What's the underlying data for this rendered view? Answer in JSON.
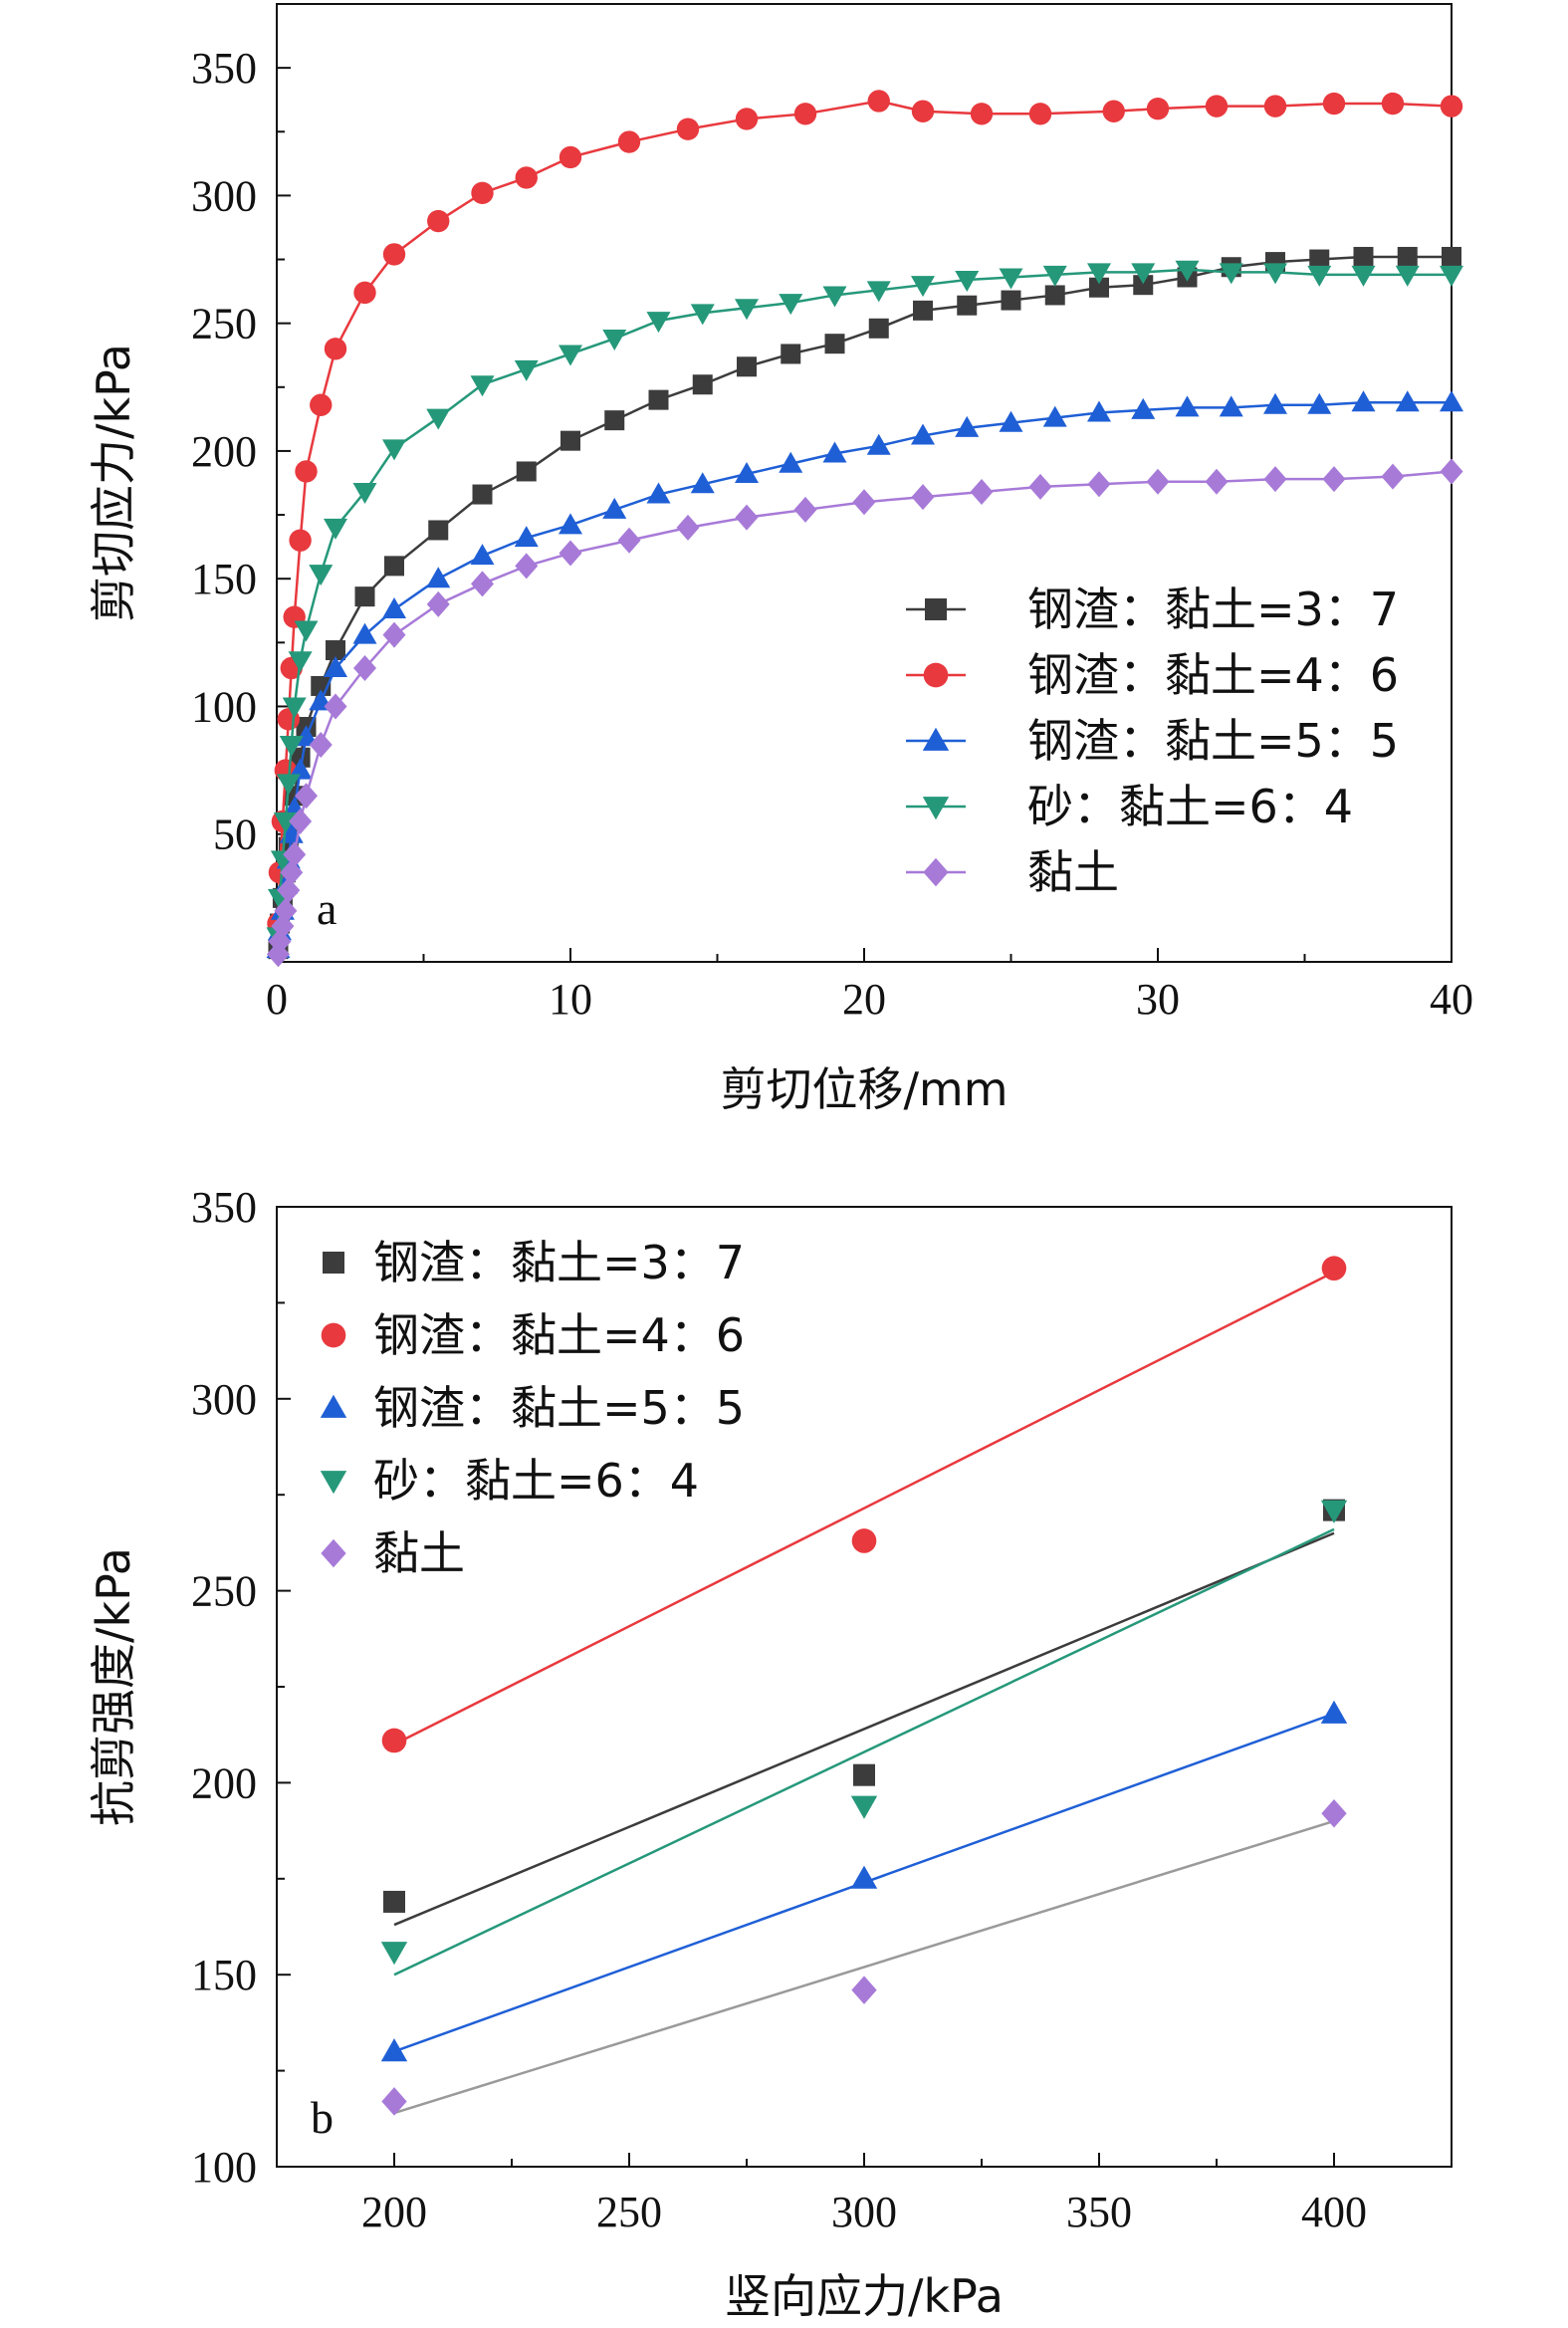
{
  "chart_data": [
    {
      "type": "line",
      "panel_label": "a",
      "xlabel": "剪切位移/mm",
      "ylabel": "剪切应力/kPa",
      "xlim": [
        0,
        40
      ],
      "ylim": [
        0,
        375
      ],
      "xticks": [
        0,
        10,
        20,
        30,
        40
      ],
      "yticks": [
        50,
        100,
        150,
        200,
        250,
        300,
        350
      ],
      "legend_position": "center-right",
      "series": [
        {
          "name": "钢渣：黏土=3：7",
          "color": "#3c3c3c",
          "marker": "square",
          "x": [
            0.05,
            0.1,
            0.2,
            0.3,
            0.4,
            0.5,
            0.6,
            0.8,
            1.0,
            1.5,
            2.0,
            3.0,
            4.0,
            5.5,
            7.0,
            8.5,
            10.0,
            11.5,
            13.0,
            14.5,
            16.0,
            17.5,
            19.0,
            20.5,
            22.0,
            23.5,
            25.0,
            26.5,
            28.0,
            29.5,
            31.0,
            32.5,
            34.0,
            35.5,
            37.0,
            38.5,
            40.0
          ],
          "y": [
            5,
            15,
            25,
            35,
            45,
            55,
            65,
            80,
            92,
            108,
            122,
            143,
            155,
            169,
            183,
            192,
            204,
            212,
            220,
            226,
            233,
            238,
            242,
            248,
            255,
            257,
            259,
            261,
            264,
            265,
            268,
            272,
            274,
            275,
            276,
            276,
            276
          ]
        },
        {
          "name": "钢渣：黏土=4：6",
          "color": "#e8393e",
          "marker": "circle",
          "x": [
            0.05,
            0.1,
            0.2,
            0.3,
            0.4,
            0.5,
            0.6,
            0.8,
            1.0,
            1.5,
            2.0,
            3.0,
            4.0,
            5.5,
            7.0,
            8.5,
            10.0,
            12.0,
            14.0,
            16.0,
            18.0,
            20.5,
            22.0,
            24.0,
            26.0,
            28.5,
            30.0,
            32.0,
            34.0,
            36.0,
            38.0,
            40.0
          ],
          "y": [
            15,
            35,
            55,
            75,
            95,
            115,
            135,
            165,
            192,
            218,
            240,
            262,
            277,
            290,
            301,
            307,
            315,
            321,
            326,
            330,
            332,
            337,
            333,
            332,
            332,
            333,
            334,
            335,
            335,
            336,
            336,
            335
          ]
        },
        {
          "name": "钢渣：黏土=5：5",
          "color": "#1f5fd6",
          "marker": "triangle-up",
          "x": [
            0.05,
            0.1,
            0.2,
            0.3,
            0.4,
            0.5,
            0.6,
            0.8,
            1.0,
            1.5,
            2.0,
            3.0,
            4.0,
            5.5,
            7.0,
            8.5,
            10.0,
            11.5,
            13.0,
            14.5,
            16.0,
            17.5,
            19.0,
            20.5,
            22.0,
            23.5,
            25.0,
            26.5,
            28.0,
            29.5,
            31.0,
            32.5,
            34.0,
            35.5,
            37.0,
            38.5,
            40.0
          ],
          "y": [
            5,
            12,
            20,
            30,
            40,
            50,
            60,
            75,
            88,
            102,
            115,
            128,
            138,
            150,
            159,
            166,
            171,
            177,
            183,
            187,
            191,
            195,
            199,
            202,
            206,
            209,
            211,
            213,
            215,
            216,
            217,
            217,
            218,
            218,
            219,
            219,
            219
          ]
        },
        {
          "name": "砂：黏土=6：4",
          "color": "#25987a",
          "marker": "triangle-down",
          "x": [
            0.05,
            0.1,
            0.2,
            0.3,
            0.4,
            0.5,
            0.6,
            0.8,
            1.0,
            1.5,
            2.0,
            3.0,
            4.0,
            5.5,
            7.0,
            8.5,
            10.0,
            11.5,
            13.0,
            14.5,
            16.0,
            17.5,
            19.0,
            20.5,
            22.0,
            23.5,
            25.0,
            26.5,
            28.0,
            29.5,
            31.0,
            32.5,
            34.0,
            35.5,
            37.0,
            38.5,
            40.0
          ],
          "y": [
            10,
            25,
            40,
            55,
            70,
            85,
            100,
            118,
            130,
            152,
            170,
            184,
            201,
            213,
            226,
            232,
            238,
            244,
            251,
            254,
            256,
            258,
            261,
            263,
            265,
            267,
            268,
            269,
            270,
            270,
            271,
            270,
            270,
            269,
            269,
            269,
            269
          ]
        },
        {
          "name": "黏土",
          "color": "#a77ad8",
          "marker": "diamond",
          "x": [
            0.05,
            0.1,
            0.2,
            0.3,
            0.4,
            0.5,
            0.6,
            0.8,
            1.0,
            1.5,
            2.0,
            3.0,
            4.0,
            5.5,
            7.0,
            8.5,
            10.0,
            12.0,
            14.0,
            16.0,
            18.0,
            20.0,
            22.0,
            24.0,
            26.0,
            28.0,
            30.0,
            32.0,
            34.0,
            36.0,
            38.0,
            40.0
          ],
          "y": [
            3,
            8,
            14,
            20,
            28,
            35,
            42,
            55,
            65,
            85,
            100,
            115,
            128,
            140,
            148,
            155,
            160,
            165,
            170,
            174,
            177,
            180,
            182,
            184,
            186,
            187,
            188,
            188,
            189,
            189,
            190,
            192
          ]
        }
      ],
      "legend_entries": [
        {
          "name": "钢渣：黏土=3：7",
          "color": "#3c3c3c",
          "marker": "square"
        },
        {
          "name": "钢渣：黏土=4：6",
          "color": "#e8393e",
          "marker": "circle"
        },
        {
          "name": "钢渣：黏土=5：5",
          "color": "#1f5fd6",
          "marker": "triangle-up"
        },
        {
          "name": "砂：黏土=6：4",
          "color": "#25987a",
          "marker": "triangle-down"
        },
        {
          "name": "黏土",
          "color": "#a77ad8",
          "marker": "diamond"
        }
      ]
    },
    {
      "type": "scatter",
      "panel_label": "b",
      "xlabel": "竖向应力/kPa",
      "ylabel": "抗剪强度/kPa",
      "xlim": [
        175,
        425
      ],
      "ylim": [
        100,
        350
      ],
      "xticks": [
        200,
        250,
        300,
        350,
        400
      ],
      "yticks": [
        100,
        150,
        200,
        250,
        300,
        350
      ],
      "legend_position": "top-left",
      "series": [
        {
          "name": "钢渣：黏土=3：7",
          "color": "#3c3c3c",
          "marker": "square",
          "line_color": "#3c3c3c",
          "x": [
            200,
            300,
            400
          ],
          "y": [
            169,
            202,
            271
          ],
          "fit": [
            [
              200,
              163
            ],
            [
              400,
              265
            ]
          ]
        },
        {
          "name": "钢渣：黏土=4：6",
          "color": "#e8393e",
          "marker": "circle",
          "line_color": "#e8393e",
          "x": [
            200,
            300,
            400
          ],
          "y": [
            211,
            263,
            334
          ],
          "fit": [
            [
              200,
              210
            ],
            [
              400,
              333
            ]
          ]
        },
        {
          "name": "钢渣：黏土=5：5",
          "color": "#1f5fd6",
          "marker": "triangle-up",
          "line_color": "#1f5fd6",
          "x": [
            200,
            300,
            400
          ],
          "y": [
            130,
            175,
            218
          ],
          "fit": [
            [
              200,
              130
            ],
            [
              400,
              218
            ]
          ]
        },
        {
          "name": "砂：黏土=6：4",
          "color": "#25987a",
          "marker": "triangle-down",
          "line_color": "#25987a",
          "x": [
            200,
            300,
            400
          ],
          "y": [
            156,
            194,
            271
          ],
          "fit": [
            [
              200,
              150
            ],
            [
              400,
              266
            ]
          ]
        },
        {
          "name": "黏土",
          "color": "#a77ad8",
          "marker": "diamond",
          "line_color": "#9a9a9a",
          "x": [
            200,
            300,
            400
          ],
          "y": [
            117,
            146,
            192
          ],
          "fit": [
            [
              200,
              114
            ],
            [
              400,
              190
            ]
          ]
        }
      ],
      "legend_entries": [
        {
          "name": "钢渣：黏土=3：7",
          "color": "#3c3c3c",
          "marker": "square"
        },
        {
          "name": "钢渣：黏土=4：6",
          "color": "#e8393e",
          "marker": "circle"
        },
        {
          "name": "钢渣：黏土=5：5",
          "color": "#1f5fd6",
          "marker": "triangle-up"
        },
        {
          "name": "砂：黏土=6：4",
          "color": "#25987a",
          "marker": "triangle-down"
        },
        {
          "name": "黏土",
          "color": "#a77ad8",
          "marker": "diamond"
        }
      ]
    }
  ]
}
